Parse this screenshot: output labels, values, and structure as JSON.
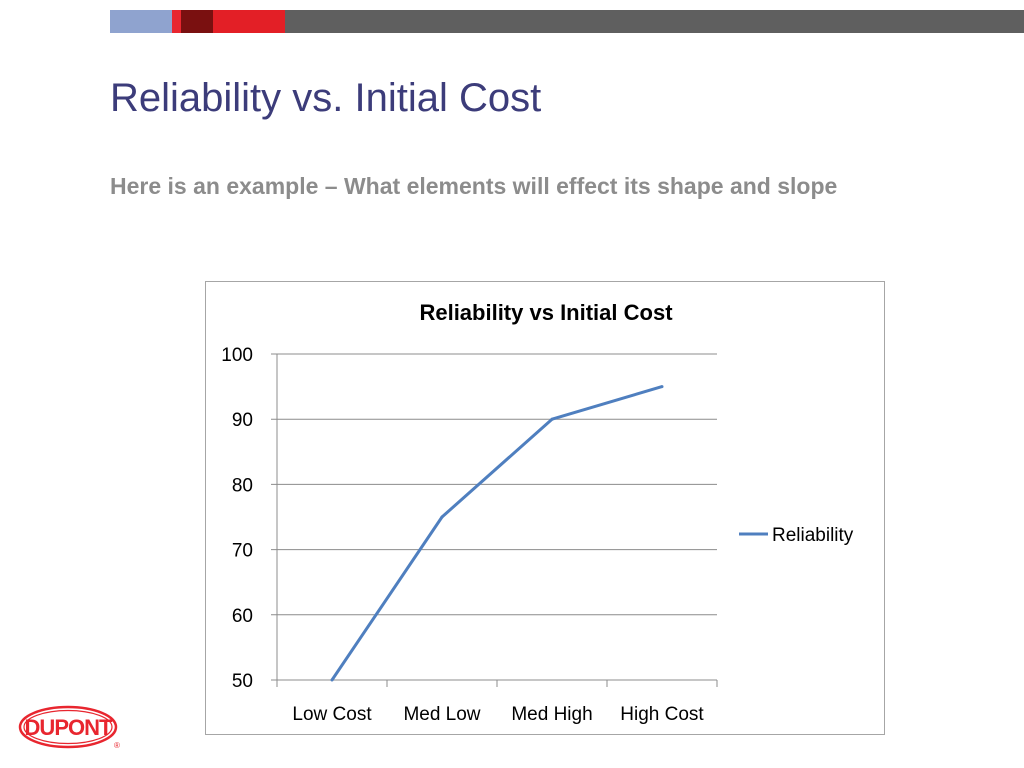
{
  "slide": {
    "title": "Reliability vs. Initial Cost",
    "subtitle": "Here is an example – What elements will effect its shape and slope",
    "title_color": "#3c3c7a",
    "subtitle_color": "#8c8c8c"
  },
  "top_bar": {
    "segments": [
      "#8fa3cf",
      "#e8262f",
      "#7a1010",
      "#e31f26",
      "#5f5f5f"
    ]
  },
  "logo": {
    "text": "DUPONT",
    "registered_mark": "®",
    "color": "#e8262f"
  },
  "chart_data": {
    "type": "line",
    "title": "Reliability vs Initial Cost",
    "categories": [
      "Low Cost",
      "Med Low",
      "Med High",
      "High Cost"
    ],
    "series": [
      {
        "name": "Reliability",
        "values": [
          50,
          75,
          90,
          95
        ],
        "color": "#4f7fbf"
      }
    ],
    "xlabel": "",
    "ylabel": "",
    "ylim": [
      50,
      100
    ],
    "yticks": [
      50,
      60,
      70,
      80,
      90,
      100
    ],
    "grid": true,
    "legend": "right"
  }
}
